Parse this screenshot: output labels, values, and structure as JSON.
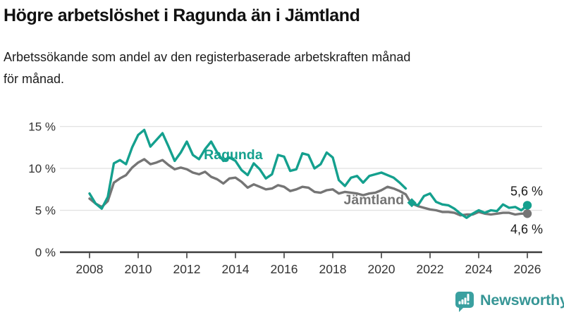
{
  "header": {
    "title": "Högre arbetslöshet i Ragunda än i Jämtland",
    "subtitle_lines": [
      "Arbetssökande som andel av den registerbaserade arbetskraften månad",
      "för månad."
    ]
  },
  "chart_data": {
    "type": "line",
    "title": "Högre arbetslöshet i Ragunda än i Jämtland",
    "subtitle": "Arbetssökande som andel av den registerbaserade arbetskraften månad för månad.",
    "unit": "%",
    "grid": "horizontal-only",
    "legend": "inline-series-labels",
    "xlim": [
      2008,
      2026
    ],
    "ylim": [
      0,
      15.5
    ],
    "x": [
      2008,
      2008.25,
      2008.5,
      2008.75,
      2009,
      2009.25,
      2009.5,
      2009.75,
      2010,
      2010.25,
      2010.5,
      2010.75,
      2011,
      2011.25,
      2011.5,
      2011.75,
      2012,
      2012.25,
      2012.5,
      2012.75,
      2013,
      2013.25,
      2013.5,
      2013.75,
      2014,
      2014.25,
      2014.5,
      2014.75,
      2015,
      2015.25,
      2015.5,
      2015.75,
      2016,
      2016.25,
      2016.5,
      2016.75,
      2017,
      2017.25,
      2017.5,
      2017.75,
      2018,
      2018.25,
      2018.5,
      2018.75,
      2019,
      2019.25,
      2019.5,
      2019.75,
      2020,
      2020.25,
      2020.5,
      2020.75,
      2021,
      2021.125,
      2021.25,
      2021.5,
      2021.75,
      2022,
      2022.25,
      2022.5,
      2022.75,
      2023,
      2023.25,
      2023.5,
      2023.75,
      2024,
      2024.25,
      2024.5,
      2024.75,
      2025,
      2025.25,
      2025.5,
      2025.75,
      2026
    ],
    "series": [
      {
        "name": "Ragunda",
        "color": "#14a08e",
        "end_label": "5,6 %",
        "end_label_position": "above",
        "inline_label_pos": {
          "x": 2012.7,
          "y": 11.1
        },
        "gap_marker": {
          "x": 2021.25,
          "y": 5.9
        },
        "values": [
          7.0,
          5.8,
          5.2,
          6.6,
          10.6,
          11.0,
          10.5,
          12.5,
          14.0,
          14.6,
          12.6,
          13.4,
          14.2,
          12.6,
          10.9,
          11.9,
          13.2,
          11.6,
          11.1,
          12.3,
          13.2,
          11.9,
          10.9,
          11.3,
          10.9,
          9.8,
          9.2,
          10.6,
          9.9,
          8.8,
          9.3,
          11.6,
          11.4,
          9.7,
          9.9,
          11.8,
          11.6,
          10.0,
          10.5,
          11.9,
          11.3,
          8.6,
          7.9,
          8.9,
          9.1,
          8.3,
          9.1,
          9.3,
          9.5,
          9.2,
          8.9,
          8.3,
          7.6,
          null,
          5.9,
          5.6,
          6.7,
          7.0,
          6.0,
          5.7,
          5.6,
          5.2,
          4.6,
          4.1,
          4.6,
          5.0,
          4.7,
          5.0,
          4.9,
          5.7,
          5.3,
          5.4,
          5.0,
          5.6
        ]
      },
      {
        "name": "Jämtland",
        "color": "#757575",
        "end_label": "4,6 %",
        "end_label_position": "below",
        "inline_label_pos": {
          "x": 2018.45,
          "y": 5.72
        },
        "values": [
          6.4,
          5.8,
          5.4,
          6.1,
          8.3,
          8.8,
          9.2,
          10.1,
          10.7,
          11.1,
          10.5,
          10.7,
          11.0,
          10.4,
          9.9,
          10.1,
          9.9,
          9.5,
          9.3,
          9.6,
          9.0,
          8.7,
          8.2,
          8.8,
          8.9,
          8.4,
          7.7,
          8.1,
          7.8,
          7.5,
          7.6,
          8.0,
          7.8,
          7.3,
          7.5,
          7.8,
          7.7,
          7.2,
          7.1,
          7.4,
          7.5,
          7.0,
          7.2,
          7.1,
          7.0,
          6.8,
          7.0,
          7.1,
          7.4,
          7.8,
          7.6,
          7.3,
          6.9,
          6.3,
          5.8,
          5.5,
          5.3,
          5.1,
          5.0,
          4.8,
          4.8,
          4.7,
          4.4,
          4.5,
          4.5,
          4.8,
          4.6,
          4.5,
          4.6,
          4.7,
          4.7,
          4.5,
          4.6,
          4.6
        ]
      }
    ],
    "x_ticks": [
      {
        "value": 2008,
        "label": "2008"
      },
      {
        "value": 2010,
        "label": "2010"
      },
      {
        "value": 2012,
        "label": "2012"
      },
      {
        "value": 2014,
        "label": "2014"
      },
      {
        "value": 2016,
        "label": "2016"
      },
      {
        "value": 2018,
        "label": "2018"
      },
      {
        "value": 2020,
        "label": "2020"
      },
      {
        "value": 2022,
        "label": "2022"
      },
      {
        "value": 2024,
        "label": "2024"
      },
      {
        "value": 2026,
        "label": "2026"
      }
    ],
    "y_ticks": [
      {
        "value": 0,
        "label": "0 %"
      },
      {
        "value": 5,
        "label": "5 %"
      },
      {
        "value": 10,
        "label": "10 %"
      },
      {
        "value": 15,
        "label": "15 %"
      }
    ]
  },
  "footer": {
    "brand": "Newsworthy",
    "brand_color": "#379696"
  }
}
